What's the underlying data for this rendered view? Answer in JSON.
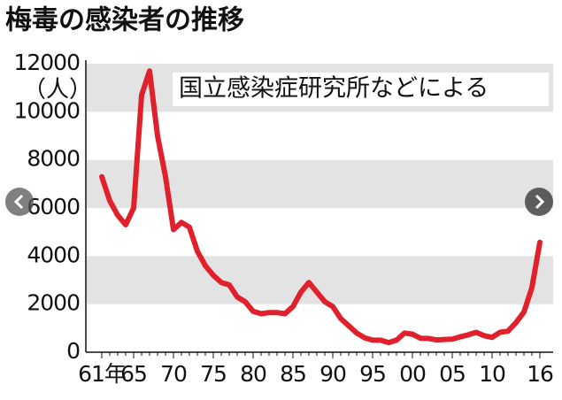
{
  "chart_data": {
    "type": "line",
    "title": "梅毒の感染者の推移",
    "y_unit": "（人）",
    "annotation": "国立感染症研究所などによる",
    "categories": [
      "61年",
      null,
      null,
      null,
      "65",
      null,
      null,
      null,
      null,
      "70",
      null,
      null,
      null,
      null,
      "75",
      null,
      null,
      null,
      null,
      "80",
      null,
      null,
      null,
      null,
      "85",
      null,
      null,
      null,
      null,
      "90",
      null,
      null,
      null,
      null,
      "95",
      null,
      null,
      null,
      null,
      "00",
      null,
      null,
      null,
      null,
      "05",
      null,
      null,
      null,
      null,
      "10",
      null,
      null,
      null,
      null,
      null,
      "16"
    ],
    "series": [
      {
        "name": "梅毒の感染者",
        "color": "#e0202a",
        "values": [
          7300,
          6300,
          5700,
          5300,
          6000,
          10700,
          11700,
          9000,
          7300,
          5100,
          5400,
          5200,
          4200,
          3600,
          3200,
          2900,
          2800,
          2300,
          2100,
          1700,
          1600,
          1650,
          1650,
          1600,
          1900,
          2500,
          2900,
          2500,
          2100,
          1900,
          1400,
          1100,
          800,
          600,
          500,
          500,
          400,
          500,
          800,
          750,
          580,
          575,
          510,
          530,
          545,
          640,
          720,
          830,
          690,
          620,
          830,
          875,
          1230,
          1670,
          2690,
          4570
        ]
      }
    ],
    "ylim": [
      0,
      12000
    ],
    "yticks": [
      0,
      2000,
      4000,
      6000,
      8000,
      10000,
      12000
    ],
    "banded_grid": true
  }
}
